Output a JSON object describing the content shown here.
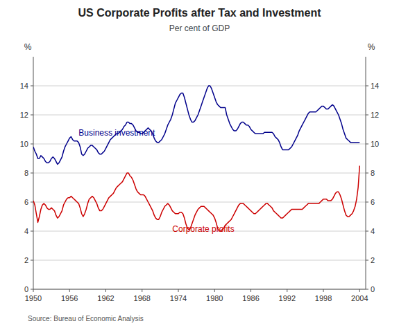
{
  "chart_data": {
    "type": "line",
    "title": "US Corporate Profits after Tax and Investment",
    "subtitle": "Per cent of GDP",
    "source": "Source: Bureau of Economic Analysis",
    "y_label": "%",
    "y2_label": "%",
    "xlim": [
      1950,
      2005
    ],
    "xticks": [
      1950,
      1956,
      1962,
      1968,
      1974,
      1980,
      1986,
      1992,
      1998,
      2004
    ],
    "ylim": [
      0,
      16
    ],
    "yticks": [
      0,
      2,
      4,
      6,
      8,
      10,
      12,
      14
    ],
    "y2lim": [
      0,
      16
    ],
    "y2ticks": [
      0,
      2,
      4,
      6,
      8,
      10,
      12,
      14
    ],
    "grid": true,
    "x": [
      1950.0,
      1950.25,
      1950.5,
      1950.75,
      1951.0,
      1951.25,
      1951.5,
      1951.75,
      1952.0,
      1952.25,
      1952.5,
      1952.75,
      1953.0,
      1953.25,
      1953.5,
      1953.75,
      1954.0,
      1954.25,
      1954.5,
      1954.75,
      1955.0,
      1955.25,
      1955.5,
      1955.75,
      1956.0,
      1956.25,
      1956.5,
      1956.75,
      1957.0,
      1957.25,
      1957.5,
      1957.75,
      1958.0,
      1958.25,
      1958.5,
      1958.75,
      1959.0,
      1959.25,
      1959.5,
      1959.75,
      1960.0,
      1960.25,
      1960.5,
      1960.75,
      1961.0,
      1961.25,
      1961.5,
      1961.75,
      1962.0,
      1962.25,
      1962.5,
      1962.75,
      1963.0,
      1963.25,
      1963.5,
      1963.75,
      1964.0,
      1964.25,
      1964.5,
      1964.75,
      1965.0,
      1965.25,
      1965.5,
      1965.75,
      1966.0,
      1966.25,
      1966.5,
      1966.75,
      1967.0,
      1967.25,
      1967.5,
      1967.75,
      1968.0,
      1968.25,
      1968.5,
      1968.75,
      1969.0,
      1969.25,
      1969.5,
      1969.75,
      1970.0,
      1970.25,
      1970.5,
      1970.75,
      1971.0,
      1971.25,
      1971.5,
      1971.75,
      1972.0,
      1972.25,
      1972.5,
      1972.75,
      1973.0,
      1973.25,
      1973.5,
      1973.75,
      1974.0,
      1974.25,
      1974.5,
      1974.75,
      1975.0,
      1975.25,
      1975.5,
      1975.75,
      1976.0,
      1976.25,
      1976.5,
      1976.75,
      1977.0,
      1977.25,
      1977.5,
      1977.75,
      1978.0,
      1978.25,
      1978.5,
      1978.75,
      1979.0,
      1979.25,
      1979.5,
      1979.75,
      1980.0,
      1980.25,
      1980.5,
      1980.75,
      1981.0,
      1981.25,
      1981.5,
      1981.75,
      1982.0,
      1982.25,
      1982.5,
      1982.75,
      1983.0,
      1983.25,
      1983.5,
      1983.75,
      1984.0,
      1984.25,
      1984.5,
      1984.75,
      1985.0,
      1985.25,
      1985.5,
      1985.75,
      1986.0,
      1986.25,
      1986.5,
      1986.75,
      1987.0,
      1987.25,
      1987.5,
      1987.75,
      1988.0,
      1988.25,
      1988.5,
      1988.75,
      1989.0,
      1989.25,
      1989.5,
      1989.75,
      1990.0,
      1990.25,
      1990.5,
      1990.75,
      1991.0,
      1991.25,
      1991.5,
      1991.75,
      1992.0,
      1992.25,
      1992.5,
      1992.75,
      1993.0,
      1993.25,
      1993.5,
      1993.75,
      1994.0,
      1994.25,
      1994.5,
      1994.75,
      1995.0,
      1995.25,
      1995.5,
      1995.75,
      1996.0,
      1996.25,
      1996.5,
      1996.75,
      1997.0,
      1997.25,
      1997.5,
      1997.75,
      1998.0,
      1998.25,
      1998.5,
      1998.75,
      1999.0,
      1999.25,
      1999.5,
      1999.75,
      2000.0,
      2000.25,
      2000.5,
      2000.75,
      2001.0,
      2001.25,
      2001.5,
      2001.75,
      2002.0,
      2002.25,
      2002.5,
      2002.75,
      2003.0,
      2003.25,
      2003.5,
      2003.75,
      2004.0
    ],
    "series": [
      {
        "name": "Business investment",
        "color": "#00008B",
        "values": [
          9.8,
          9.5,
          9.3,
          9.0,
          9.0,
          9.2,
          9.1,
          9.0,
          8.8,
          8.7,
          8.7,
          8.8,
          9.0,
          9.1,
          9.0,
          8.8,
          8.6,
          8.7,
          8.9,
          9.1,
          9.5,
          9.8,
          10.0,
          10.2,
          10.4,
          10.5,
          10.3,
          10.2,
          10.2,
          10.2,
          10.1,
          9.8,
          9.3,
          9.2,
          9.3,
          9.5,
          9.7,
          9.8,
          9.9,
          9.9,
          9.8,
          9.7,
          9.6,
          9.4,
          9.3,
          9.3,
          9.4,
          9.5,
          9.7,
          9.9,
          10.1,
          10.3,
          10.4,
          10.5,
          10.6,
          10.7,
          10.7,
          10.8,
          10.9,
          11.0,
          11.2,
          11.3,
          11.5,
          11.5,
          11.4,
          11.4,
          11.3,
          11.1,
          10.9,
          10.8,
          10.8,
          10.7,
          10.7,
          10.8,
          10.9,
          11.0,
          11.1,
          11.0,
          10.9,
          10.7,
          10.4,
          10.2,
          10.1,
          10.1,
          10.2,
          10.3,
          10.5,
          10.7,
          11.0,
          11.3,
          11.5,
          11.7,
          12.0,
          12.4,
          12.8,
          13.0,
          13.2,
          13.4,
          13.5,
          13.5,
          13.2,
          12.8,
          12.4,
          12.0,
          11.7,
          11.5,
          11.5,
          11.6,
          11.8,
          12.0,
          12.3,
          12.6,
          12.9,
          13.2,
          13.5,
          13.8,
          14.0,
          14.0,
          13.8,
          13.5,
          13.2,
          12.9,
          12.7,
          12.6,
          12.5,
          12.5,
          12.5,
          12.5,
          12.0,
          11.7,
          11.4,
          11.2,
          11.0,
          10.9,
          10.9,
          11.0,
          11.2,
          11.4,
          11.5,
          11.5,
          11.4,
          11.3,
          11.3,
          11.2,
          11.0,
          10.9,
          10.8,
          10.7,
          10.7,
          10.7,
          10.7,
          10.7,
          10.7,
          10.8,
          10.8,
          10.8,
          10.8,
          10.8,
          10.8,
          10.7,
          10.5,
          10.4,
          10.3,
          10.1,
          9.8,
          9.6,
          9.6,
          9.6,
          9.6,
          9.6,
          9.7,
          9.8,
          10.0,
          10.2,
          10.4,
          10.6,
          10.9,
          11.1,
          11.3,
          11.5,
          11.7,
          11.9,
          12.1,
          12.2,
          12.2,
          12.2,
          12.2,
          12.2,
          12.3,
          12.4,
          12.5,
          12.6,
          12.6,
          12.5,
          12.4,
          12.4,
          12.5,
          12.6,
          12.7,
          12.6,
          12.4,
          12.2,
          12.0,
          11.7,
          11.4,
          11.0,
          10.7,
          10.4,
          10.3,
          10.2,
          10.1,
          10.1,
          10.1,
          10.1,
          10.1,
          10.1,
          10.1
        ]
      },
      {
        "name": "Corporate profits",
        "color": "#CC0000",
        "values": [
          6.1,
          5.8,
          5.2,
          4.6,
          5.0,
          5.5,
          5.8,
          5.9,
          5.8,
          5.6,
          5.5,
          5.5,
          5.6,
          5.5,
          5.4,
          5.1,
          4.9,
          5.0,
          5.2,
          5.4,
          5.8,
          6.0,
          6.2,
          6.3,
          6.3,
          6.4,
          6.3,
          6.2,
          6.1,
          6.0,
          5.9,
          5.6,
          5.2,
          5.0,
          5.2,
          5.5,
          5.9,
          6.2,
          6.3,
          6.4,
          6.3,
          6.1,
          5.9,
          5.6,
          5.4,
          5.4,
          5.5,
          5.7,
          5.9,
          6.1,
          6.3,
          6.4,
          6.5,
          6.6,
          6.8,
          7.0,
          7.1,
          7.2,
          7.3,
          7.4,
          7.6,
          7.8,
          8.0,
          8.0,
          7.8,
          7.7,
          7.5,
          7.2,
          6.9,
          6.7,
          6.6,
          6.5,
          6.5,
          6.5,
          6.4,
          6.2,
          6.0,
          5.8,
          5.6,
          5.4,
          5.1,
          4.9,
          4.8,
          4.8,
          5.0,
          5.3,
          5.5,
          5.7,
          5.8,
          5.9,
          5.8,
          5.6,
          5.4,
          5.3,
          5.2,
          5.2,
          5.2,
          5.3,
          5.3,
          5.2,
          4.9,
          4.5,
          4.2,
          4.1,
          4.2,
          4.5,
          4.8,
          5.1,
          5.3,
          5.5,
          5.6,
          5.7,
          5.7,
          5.7,
          5.6,
          5.5,
          5.4,
          5.3,
          5.2,
          5.1,
          4.9,
          4.6,
          4.2,
          4.0,
          4.0,
          4.1,
          4.2,
          4.4,
          4.5,
          4.6,
          4.7,
          4.8,
          5.0,
          5.2,
          5.4,
          5.6,
          5.8,
          5.9,
          5.9,
          5.9,
          5.8,
          5.7,
          5.6,
          5.5,
          5.4,
          5.3,
          5.2,
          5.2,
          5.3,
          5.4,
          5.5,
          5.6,
          5.7,
          5.8,
          5.9,
          5.9,
          5.8,
          5.7,
          5.6,
          5.4,
          5.3,
          5.2,
          5.1,
          5.0,
          4.9,
          4.9,
          5.0,
          5.1,
          5.2,
          5.3,
          5.4,
          5.5,
          5.5,
          5.5,
          5.5,
          5.5,
          5.5,
          5.5,
          5.5,
          5.6,
          5.7,
          5.8,
          5.9,
          5.9,
          5.9,
          5.9,
          5.9,
          5.9,
          5.9,
          5.9,
          6.0,
          6.1,
          6.2,
          6.2,
          6.2,
          6.1,
          6.1,
          6.1,
          6.2,
          6.4,
          6.6,
          6.7,
          6.7,
          6.5,
          6.2,
          5.8,
          5.4,
          5.1,
          5.0,
          5.0,
          5.1,
          5.2,
          5.4,
          5.7,
          6.2,
          7.0,
          8.5
        ]
      }
    ]
  }
}
